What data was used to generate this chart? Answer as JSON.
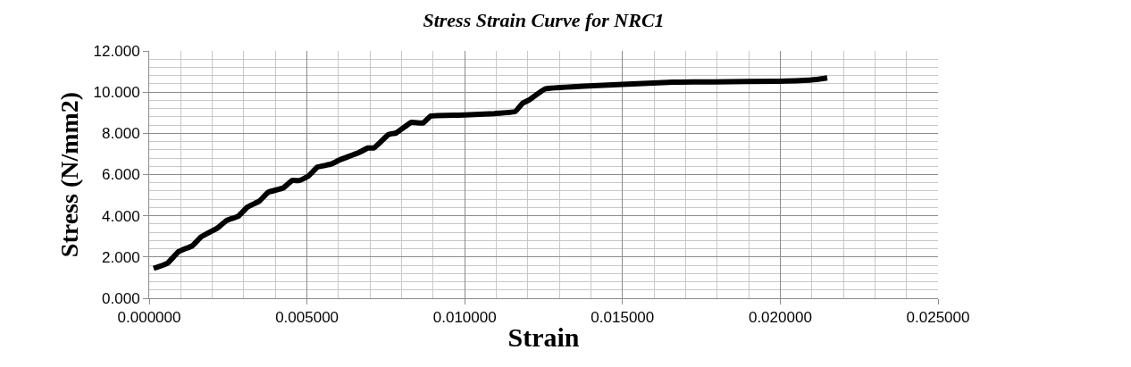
{
  "chart_data": {
    "type": "line",
    "title": "Stress Strain Curve for NRC1",
    "xlabel": "Strain",
    "ylabel": "Stress (N/mm2)",
    "x": [
      0.00014,
      0.00057,
      0.00094,
      0.00137,
      0.00165,
      0.00217,
      0.00245,
      0.00283,
      0.00311,
      0.00349,
      0.00377,
      0.00425,
      0.00453,
      0.00476,
      0.00505,
      0.00533,
      0.00575,
      0.00604,
      0.00665,
      0.00693,
      0.00712,
      0.00759,
      0.00783,
      0.0083,
      0.00868,
      0.00892,
      0.01,
      0.01094,
      0.0116,
      0.01184,
      0.01203,
      0.01255,
      0.01377,
      0.015,
      0.0166,
      0.0179,
      0.02,
      0.021,
      0.02149
    ],
    "series": [
      {
        "color": "#000000",
        "values": [
          1.45,
          1.69,
          2.27,
          2.55,
          2.98,
          3.41,
          3.77,
          3.99,
          4.42,
          4.71,
          5.14,
          5.35,
          5.71,
          5.71,
          5.93,
          6.36,
          6.5,
          6.71,
          7.07,
          7.29,
          7.29,
          7.95,
          8.02,
          8.53,
          8.5,
          8.84,
          8.89,
          8.96,
          9.06,
          9.47,
          9.61,
          10.16,
          10.29,
          10.38,
          10.48,
          10.5,
          10.53,
          10.59,
          10.69
        ]
      }
    ],
    "xlim": [
      0,
      0.025
    ],
    "xticks": [
      {
        "value": 0,
        "label": "0.000000"
      },
      {
        "value": 0.005,
        "label": "0.005000"
      },
      {
        "value": 0.01,
        "label": "0.010000"
      },
      {
        "value": 0.015,
        "label": "0.015000"
      },
      {
        "value": 0.02,
        "label": "0.020000"
      },
      {
        "value": 0.025,
        "label": "0.025000"
      }
    ],
    "ylim": [
      0,
      12
    ],
    "yticks": [
      {
        "value": 0,
        "label": "0.000"
      },
      {
        "value": 2,
        "label": "2.000"
      },
      {
        "value": 4,
        "label": "4.000"
      },
      {
        "value": 6,
        "label": "6.000"
      },
      {
        "value": 8,
        "label": "8.000"
      },
      {
        "value": 10,
        "label": "10.000"
      },
      {
        "value": 12,
        "label": "12.000"
      }
    ],
    "grid": true,
    "marker": "none",
    "line_style": "solid"
  }
}
